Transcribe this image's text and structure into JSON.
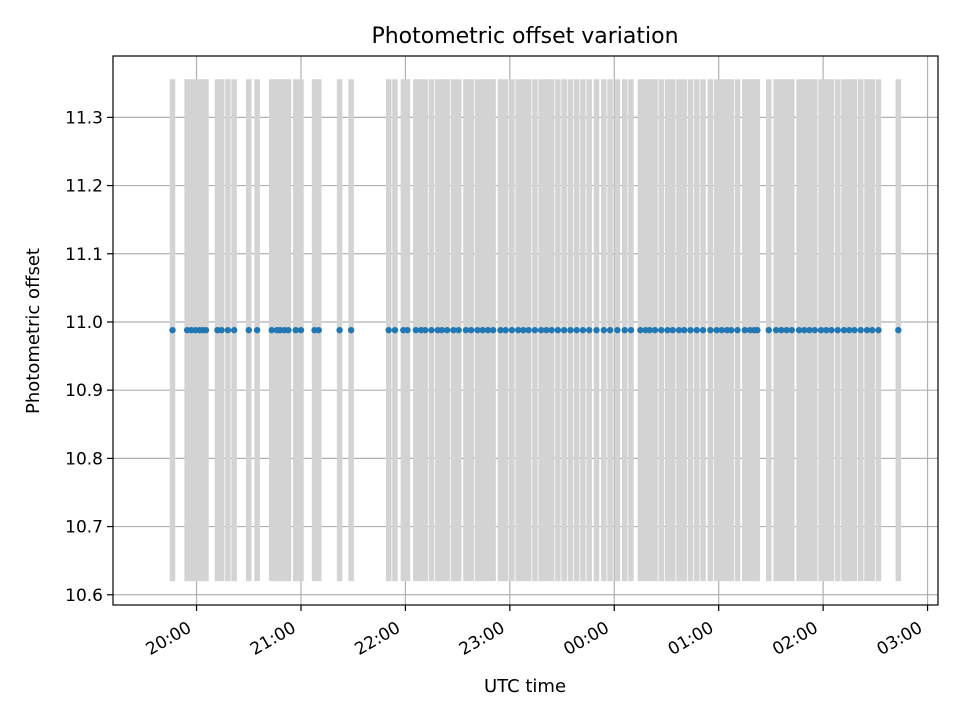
{
  "chart_data": {
    "type": "scatter",
    "title": "Photometric offset variation",
    "xlabel": "UTC time",
    "ylabel": "Photometric offset",
    "x_unit": "UTC time (decimal hours; values past 24 are after midnight)",
    "xlim": [
      19.2,
      27.1
    ],
    "ylim": [
      10.585,
      11.39
    ],
    "x_ticks": [
      20,
      21,
      22,
      23,
      24,
      25,
      26,
      27
    ],
    "x_tick_labels": [
      "20:00",
      "21:00",
      "22:00",
      "23:00",
      "00:00",
      "01:00",
      "02:00",
      "03:00"
    ],
    "y_ticks": [
      10.6,
      10.7,
      10.8,
      10.9,
      11.0,
      11.1,
      11.2,
      11.3
    ],
    "y_tick_labels": [
      "10.6",
      "10.7",
      "10.8",
      "10.9",
      "11.0",
      "11.1",
      "11.2",
      "11.3"
    ],
    "grid": true,
    "marker_color": "#1f77b4",
    "errorbar_color": "#d3d3d3",
    "y_value": 10.988,
    "yerr": 0.368,
    "x": [
      19.77,
      19.91,
      19.95,
      19.99,
      20.03,
      20.06,
      20.09,
      20.2,
      20.24,
      20.3,
      20.36,
      20.5,
      20.58,
      20.72,
      20.77,
      20.8,
      20.84,
      20.88,
      20.95,
      21.0,
      21.13,
      21.17,
      21.37,
      21.48,
      21.84,
      21.9,
      21.98,
      22.02,
      22.1,
      22.15,
      22.19,
      22.25,
      22.31,
      22.35,
      22.4,
      22.46,
      22.51,
      22.58,
      22.63,
      22.69,
      22.74,
      22.79,
      22.84,
      22.91,
      22.96,
      23.02,
      23.08,
      23.13,
      23.18,
      23.24,
      23.3,
      23.35,
      23.4,
      23.46,
      23.52,
      23.58,
      23.64,
      23.7,
      23.76,
      23.83,
      23.9,
      23.96,
      24.03,
      24.1,
      24.16,
      24.25,
      24.3,
      24.34,
      24.39,
      24.45,
      24.51,
      24.56,
      24.62,
      24.67,
      24.73,
      24.79,
      24.85,
      24.92,
      24.98,
      25.03,
      25.08,
      25.12,
      25.18,
      25.25,
      25.3,
      25.34,
      25.37,
      25.48,
      25.55,
      25.6,
      25.65,
      25.7,
      25.77,
      25.82,
      25.87,
      25.92,
      25.98,
      26.03,
      26.08,
      26.14,
      26.2,
      26.25,
      26.3,
      26.36,
      26.42,
      26.47,
      26.53,
      26.72
    ]
  }
}
